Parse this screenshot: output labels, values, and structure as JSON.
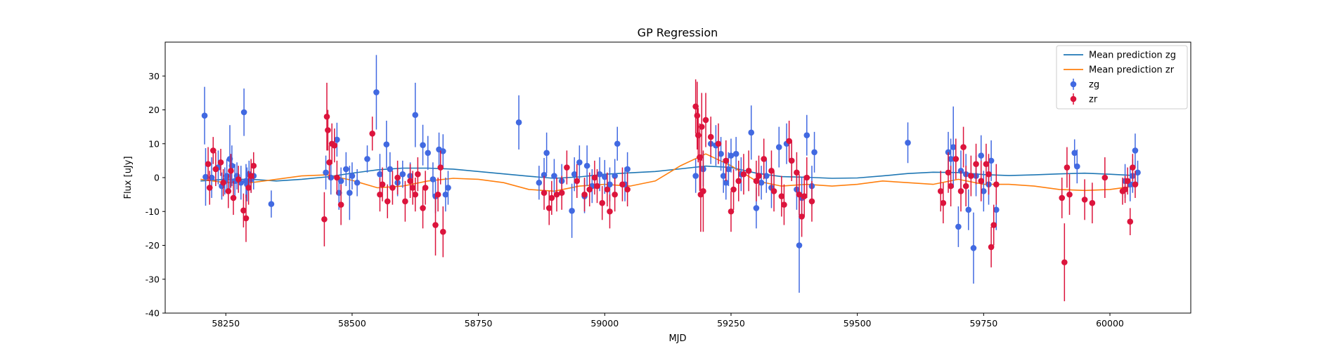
{
  "chart_data": {
    "type": "scatter",
    "title": "GP Regression",
    "xlabel": "MJD",
    "ylabel": "Flux [uJy]",
    "xlim": [
      58130,
      60160
    ],
    "ylim": [
      -40,
      40
    ],
    "xticks": [
      58250,
      58500,
      58750,
      59000,
      59250,
      59500,
      59750,
      60000
    ],
    "yticks": [
      -40,
      -30,
      -20,
      -10,
      0,
      10,
      20,
      30
    ],
    "grid": false,
    "legend_position": "top-right",
    "colors": {
      "zg": "#4169e1",
      "zr": "#dc143c",
      "mean_zg": "#1f77b4",
      "mean_zr": "#ff7f0e"
    },
    "legend": [
      {
        "label": "Mean prediction zg",
        "kind": "line",
        "color": "#1f77b4"
      },
      {
        "label": "Mean prediction zr",
        "kind": "line",
        "color": "#ff7f0e"
      },
      {
        "label": "zg",
        "kind": "errorbar",
        "color": "#4169e1"
      },
      {
        "label": "zr",
        "kind": "errorbar",
        "color": "#dc143c"
      }
    ],
    "lines": [
      {
        "name": "Mean prediction zg",
        "color": "#1f77b4",
        "x": [
          58200,
          58250,
          58300,
          58350,
          58400,
          58450,
          58500,
          58550,
          58600,
          58650,
          58700,
          58750,
          58800,
          58850,
          58900,
          58950,
          59000,
          59050,
          59100,
          59150,
          59200,
          59250,
          59300,
          59350,
          59400,
          59450,
          59500,
          59550,
          59600,
          59650,
          59700,
          59750,
          59800,
          59850,
          59900,
          59950,
          60000,
          60050
        ],
        "y": [
          -1,
          -0.5,
          -0.5,
          -1,
          -0.5,
          0.2,
          1.3,
          2.3,
          2.8,
          2.8,
          2.5,
          1.8,
          1.1,
          0.4,
          -0.2,
          0.2,
          1.0,
          1.4,
          1.8,
          2.6,
          3.4,
          3.0,
          1.3,
          0.3,
          0.1,
          -0.2,
          -0.1,
          0.5,
          1.2,
          1.6,
          1.5,
          0.9,
          0.6,
          0.8,
          1.1,
          1.3,
          1.0,
          0.6
        ]
      },
      {
        "name": "Mean prediction zr",
        "color": "#ff7f0e",
        "x": [
          58200,
          58250,
          58300,
          58350,
          58400,
          58450,
          58500,
          58550,
          58600,
          58650,
          58700,
          58750,
          58800,
          58850,
          58900,
          58950,
          59000,
          59050,
          59100,
          59150,
          59200,
          59250,
          59300,
          59350,
          59400,
          59450,
          59500,
          59550,
          59600,
          59650,
          59700,
          59750,
          59800,
          59850,
          59900,
          59950,
          60000,
          60050
        ],
        "y": [
          -0.5,
          -1.5,
          -1.5,
          -0.5,
          0.5,
          0.8,
          -0.8,
          -3,
          -2.5,
          -1,
          -0.2,
          -0.5,
          -1.5,
          -3.5,
          -4,
          -2.5,
          -2,
          -2.5,
          -1,
          3.5,
          7,
          3.5,
          -1,
          -2.5,
          -2,
          -2.5,
          -2,
          -1,
          -1.5,
          -2,
          -0.5,
          -2,
          -2,
          -2.5,
          -3.5,
          -3.8,
          -3.5,
          -2.5
        ]
      }
    ],
    "series": [
      {
        "name": "zg",
        "color": "#4169e1",
        "x": [
          58208,
          58210,
          58222,
          58235,
          58242,
          58248,
          58252,
          58258,
          58262,
          58268,
          58272,
          58280,
          58286,
          58290,
          58292,
          58296,
          58300,
          58305,
          58340,
          58448,
          58458,
          58470,
          58474,
          58478,
          58488,
          58495,
          58500,
          58510,
          58530,
          58548,
          58555,
          58568,
          58575,
          58590,
          58600,
          58615,
          58625,
          58640,
          58650,
          58660,
          58665,
          58672,
          58680,
          58685,
          58690,
          58830,
          58870,
          58880,
          58885,
          58900,
          58915,
          58935,
          58940,
          58950,
          58960,
          58965,
          58975,
          58990,
          59000,
          59010,
          59020,
          59025,
          59040,
          59045,
          59180,
          59195,
          59210,
          59220,
          59230,
          59235,
          59240,
          59245,
          59250,
          59260,
          59270,
          59290,
          59300,
          59310,
          59320,
          59330,
          59345,
          59360,
          59370,
          59380,
          59385,
          59390,
          59400,
          59410,
          59415,
          59600,
          59680,
          59685,
          59690,
          59700,
          59705,
          59715,
          59720,
          59730,
          59735,
          59745,
          59750,
          59760,
          59765,
          59775,
          59930,
          59935,
          60030,
          60040,
          60045,
          60050,
          60055
        ],
        "y": [
          18.3,
          0.2,
          0,
          3,
          -2.5,
          -1,
          0.5,
          5.5,
          3.5,
          -1,
          0.5,
          -1.5,
          19.3,
          -1,
          -2,
          1,
          -0.5,
          0.5,
          -7.8,
          1.5,
          0,
          11.2,
          -4.5,
          -1,
          2.5,
          -4.5,
          0.5,
          -1.5,
          5.5,
          25.2,
          1,
          9.8,
          2.5,
          -1.5,
          1,
          0.5,
          18.5,
          9.6,
          7.3,
          -0.5,
          -5.5,
          8.3,
          7.8,
          -5,
          -3,
          16.3,
          -1.5,
          0.8,
          7.3,
          0.5,
          -1,
          -9.8,
          1,
          4.5,
          -5.5,
          3.5,
          -2.5,
          1,
          0.2,
          -2,
          0.5,
          10,
          -2,
          2.5,
          0.5,
          2.5,
          10,
          9.5,
          7,
          0.5,
          -1.5,
          2.5,
          6.5,
          7,
          1,
          13.3,
          -9,
          -1.5,
          0.5,
          -3,
          9,
          10,
          5,
          -3.5,
          -20,
          -6,
          12.5,
          -2.5,
          7.5,
          10.3,
          7.5,
          5.5,
          9,
          -14.5,
          2,
          1,
          -9.5,
          -20.8,
          0.5,
          6.5,
          -4,
          -2,
          5,
          -9.5,
          7.3,
          3.3,
          -1,
          -2,
          0.5,
          8,
          1.5
        ],
        "yerr": [
          8.5,
          8.5,
          6,
          5,
          4,
          4,
          5,
          10,
          6,
          5,
          4,
          5,
          7,
          5,
          5,
          4,
          4,
          4,
          4,
          5,
          5,
          5,
          5,
          4,
          5,
          8,
          4,
          4,
          4,
          11,
          6,
          7,
          5,
          4,
          4,
          4,
          9.5,
          6,
          5,
          5,
          5,
          5,
          5,
          5,
          5,
          8,
          5,
          5,
          6,
          5,
          5,
          8,
          5,
          5,
          5,
          6,
          5,
          5,
          5,
          5,
          5,
          5,
          5,
          5,
          5,
          5,
          6,
          6,
          5,
          5,
          5,
          5,
          5,
          5,
          5,
          8,
          6,
          5,
          5,
          6,
          6,
          6,
          6,
          6,
          14,
          6,
          6,
          6,
          6,
          6,
          6,
          6,
          12,
          6,
          6,
          6,
          6,
          10.5,
          6,
          6,
          6,
          6,
          6,
          6,
          4,
          5,
          5,
          5,
          5,
          5,
          3.5
        ]
      },
      {
        "name": "zr",
        "color": "#dc143c",
        "x": [
          58215,
          58218,
          58225,
          58230,
          58240,
          58245,
          58255,
          58260,
          58265,
          58275,
          58285,
          58290,
          58295,
          58300,
          58305,
          58445,
          58450,
          58452,
          58455,
          58460,
          58465,
          58470,
          58478,
          58540,
          58555,
          58560,
          58570,
          58580,
          58590,
          58605,
          58615,
          58620,
          58625,
          58630,
          58640,
          58645,
          58665,
          58670,
          58675,
          58680,
          58880,
          58890,
          58895,
          58905,
          58915,
          58925,
          58945,
          58960,
          58970,
          58980,
          58985,
          58995,
          59005,
          59010,
          59020,
          59035,
          59045,
          59180,
          59183,
          59185,
          59188,
          59190,
          59192,
          59195,
          59200,
          59210,
          59225,
          59240,
          59250,
          59255,
          59265,
          59275,
          59285,
          59300,
          59305,
          59315,
          59330,
          59335,
          59350,
          59355,
          59365,
          59370,
          59380,
          59385,
          59390,
          59395,
          59400,
          59410,
          59665,
          59670,
          59680,
          59685,
          59695,
          59705,
          59710,
          59715,
          59725,
          59735,
          59745,
          59755,
          59760,
          59765,
          59770,
          59775,
          59905,
          59910,
          59915,
          59920,
          59950,
          59965,
          59990,
          60025,
          60030,
          60035,
          60040,
          60045,
          60050
        ],
        "y": [
          4,
          -3,
          8,
          2.5,
          4.5,
          -1.5,
          -4,
          2,
          -6,
          -0.5,
          -9.7,
          -12,
          -3,
          0.5,
          3.5,
          -12.3,
          18,
          14,
          4.5,
          10,
          9.5,
          0,
          -8,
          13,
          -5,
          -2,
          -7,
          -3,
          0,
          -7,
          -1,
          -3,
          -5,
          1,
          -9,
          -3,
          -14,
          -5,
          3,
          -16,
          -4.5,
          -9,
          -6,
          -5,
          -4.5,
          3,
          -1,
          -5,
          -3.5,
          0,
          -2.5,
          -7.5,
          -3.5,
          -10,
          -5,
          -2,
          -3.5,
          21,
          18.3,
          12.5,
          6,
          -5,
          15,
          -4,
          17,
          12,
          10,
          5,
          -10,
          -3.5,
          -1,
          1,
          2,
          -1,
          0.5,
          5.5,
          2,
          -4,
          -5.5,
          -8,
          10.8,
          5,
          1.5,
          -5,
          -11.5,
          -5.5,
          0,
          -7,
          -4,
          -7.5,
          1.5,
          -2.5,
          5.5,
          -4,
          9,
          -2.5,
          0.5,
          4,
          -1,
          4,
          1,
          -20.5,
          -14,
          -2,
          -6,
          -25,
          3,
          -5,
          -6.5,
          -7.5,
          0,
          -4,
          -3.5,
          -1,
          -13,
          3,
          -2
        ],
        "yerr": [
          5,
          5,
          4,
          5,
          4,
          4,
          5,
          5,
          5,
          4,
          5,
          7,
          5,
          5,
          4,
          8,
          10,
          6,
          5,
          6,
          5,
          5,
          6,
          5,
          5,
          5,
          5,
          5,
          5,
          6,
          5,
          5,
          5,
          5,
          6,
          5,
          9,
          5,
          5,
          7.5,
          5,
          5,
          5,
          5,
          5,
          5,
          5,
          5,
          5,
          5,
          5,
          5,
          5,
          5,
          5,
          5,
          5,
          8,
          10,
          8,
          10,
          11,
          10,
          12,
          8,
          6,
          6,
          6,
          6,
          6,
          6,
          6,
          6,
          6,
          6,
          6,
          6,
          6,
          6,
          6,
          6,
          6,
          6,
          6,
          6,
          6,
          6,
          6,
          6,
          6,
          6,
          6,
          6,
          6,
          6,
          6,
          6,
          6,
          6,
          6,
          6,
          6,
          6,
          6,
          6,
          11.5,
          6,
          6,
          6,
          6,
          6,
          4,
          4,
          4,
          4,
          4,
          4
        ]
      }
    ]
  }
}
